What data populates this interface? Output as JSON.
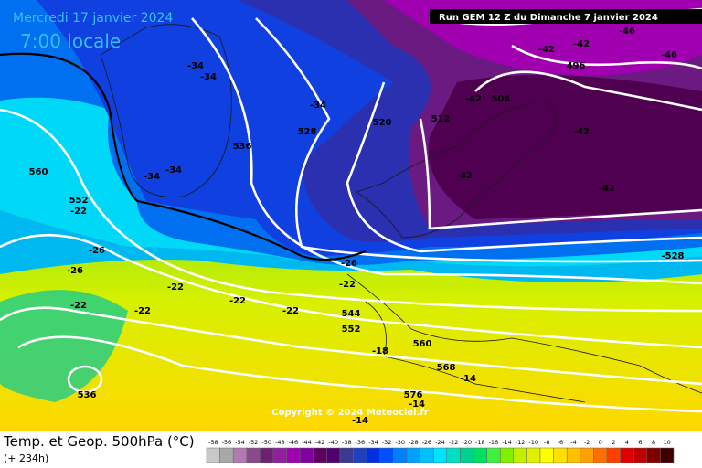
{
  "header": {
    "date": "Mercredi 17 janvier 2024",
    "time": "7:00 locale",
    "run": "Run GEM 12 Z du Dimanche 7 janvier 2024"
  },
  "footer": {
    "field": "Temp. et Geop. 500hPa (°C)",
    "lead": "(+ 234h)",
    "copyright": "Copyright © 2024 Meteociel.fr"
  },
  "map_labels": [
    "-42",
    "-46",
    "496",
    "504",
    "512",
    "520",
    "528",
    "536",
    "544",
    "552",
    "560",
    "560",
    "568",
    "576",
    "536",
    "552",
    "-528",
    "-42",
    "-42",
    "-42",
    "-42",
    "-42",
    "-46",
    "-34",
    "-34",
    "-34",
    "-34",
    "-34",
    "-26",
    "-26",
    "-26",
    "-22",
    "-22",
    "-22",
    "-22",
    "-22",
    "-22",
    "-18",
    "-14",
    "-14",
    "-22",
    "-14"
  ],
  "colorbar": {
    "ticks": [
      -58,
      -56,
      -54,
      -52,
      -50,
      -48,
      -46,
      -44,
      -42,
      -40,
      -38,
      -36,
      -34,
      -32,
      -30,
      -28,
      -26,
      -24,
      -22,
      -20,
      -18,
      -16,
      -14,
      -12,
      -10,
      -8,
      -6,
      -4,
      -2,
      0,
      2,
      4,
      6,
      8,
      10
    ],
    "colors": [
      "#c8c8c8",
      "#a8a8a8",
      "#b07ab0",
      "#8a4a8a",
      "#702070",
      "#9020a0",
      "#a000b0",
      "#8000a0",
      "#600060",
      "#500070",
      "#3a3a90",
      "#2040c0",
      "#0030e0",
      "#0050ff",
      "#0080ff",
      "#00a0ff",
      "#00c0ff",
      "#00e0ff",
      "#00e0c0",
      "#00d090",
      "#00e060",
      "#40f040",
      "#80f000",
      "#c0f000",
      "#e0f000",
      "#ffff00",
      "#ffe000",
      "#ffc000",
      "#ffa000",
      "#ff7000",
      "#ff4000",
      "#e00000",
      "#c00000",
      "#800000",
      "#400000"
    ]
  }
}
